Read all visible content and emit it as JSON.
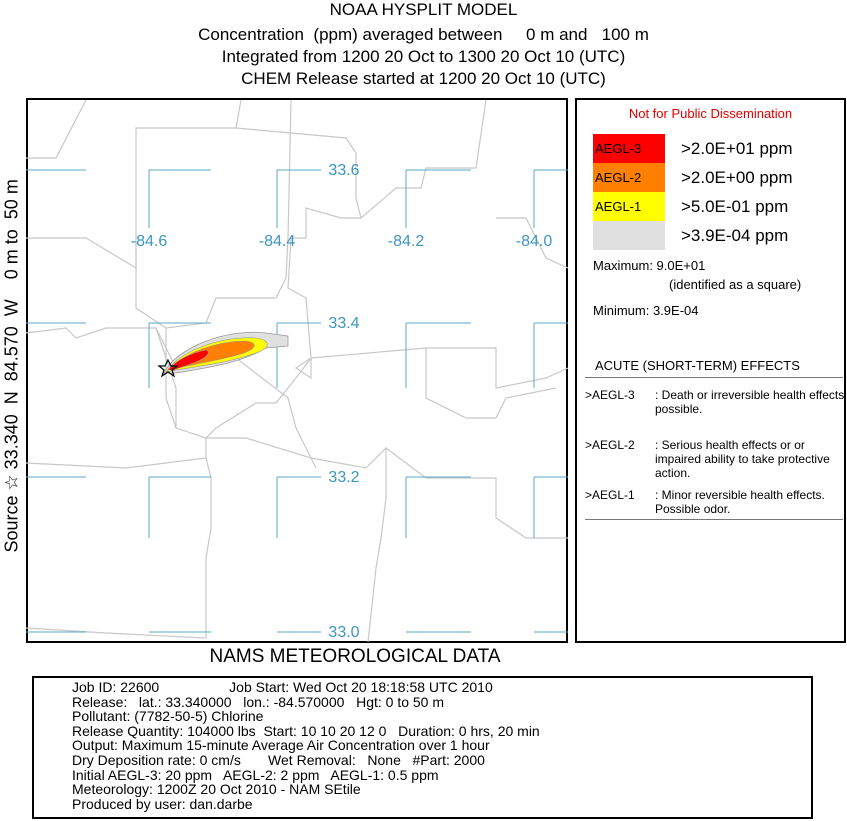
{
  "header": {
    "title": "NOAA HYSPLIT MODEL",
    "lines": [
      "Concentration  (ppm) averaged between     0 m and   100 m",
      "Integrated from 1200 20 Oct to 1300 20 Oct 10 (UTC)",
      "CHEM Release started at 1200 20 Oct 10 (UTC)"
    ]
  },
  "side_label": "Source ☆ 33.340  N  84.570  W    0 m to  50 m",
  "map": {
    "lon_labels": [
      "-84.6",
      "-84.4",
      "-84.2",
      "-84.0"
    ],
    "lat_labels": [
      "33.6",
      "33.4",
      "33.2",
      "33.0"
    ]
  },
  "legend": {
    "notice": "Not for Public Dissemination",
    "levels": [
      {
        "name": "AEGL-3",
        "threshold": ">2.0E+01 ppm",
        "color": "#ff0000"
      },
      {
        "name": "AEGL-2",
        "threshold": ">2.0E+00 ppm",
        "color": "#ff8000"
      },
      {
        "name": "AEGL-1",
        "threshold": ">5.0E-01 ppm",
        "color": "#ffff00"
      },
      {
        "threshold": ">3.9E-04 ppm",
        "color": "#e0e0e0"
      }
    ],
    "maximum": "Maximum: 9.0E+01",
    "maximum_note": "(identified as a square)",
    "minimum": "Minimum: 3.9E-04",
    "effects_title": "ACUTE (SHORT-TERM) EFFECTS",
    "effects": [
      {
        "level": ">AEGL-3",
        "description": ": Death or irreversible health effects possible."
      },
      {
        "level": ">AEGL-2",
        "description": ": Serious health effects or or impaired ability to take protective action."
      },
      {
        "level": ">AEGL-1",
        "description": ": Minor reversible health effects. Possible odor."
      }
    ]
  },
  "footer_title": "NAMS METEOROLOGICAL DATA",
  "info": {
    "lines": [
      "Job ID: 22600                  Job Start: Wed Oct 20 18:18:58 UTC 2010",
      "Release:   lat.: 33.340000   lon.: -84.570000   Hgt: 0 to 50 m",
      "Pollutant: (7782-50-5) Chlorine",
      "Release Quantity: 104000 lbs  Start: 10 10 20 12 0   Duration: 0 hrs, 20 min",
      "Output: Maximum 15-minute Average Air Concentration over 1 hour",
      "Dry Deposition rate: 0 cm/s       Wet Removal:   None   #Part: 2000",
      "Initial AEGL-3: 20 ppm   AEGL-2: 2 ppm   AEGL-1: 0.5 ppm",
      "Meteorology: 1200Z 20 Oct 2010 - NAM SEtile",
      "Produced by user: dan.darbe"
    ]
  }
}
